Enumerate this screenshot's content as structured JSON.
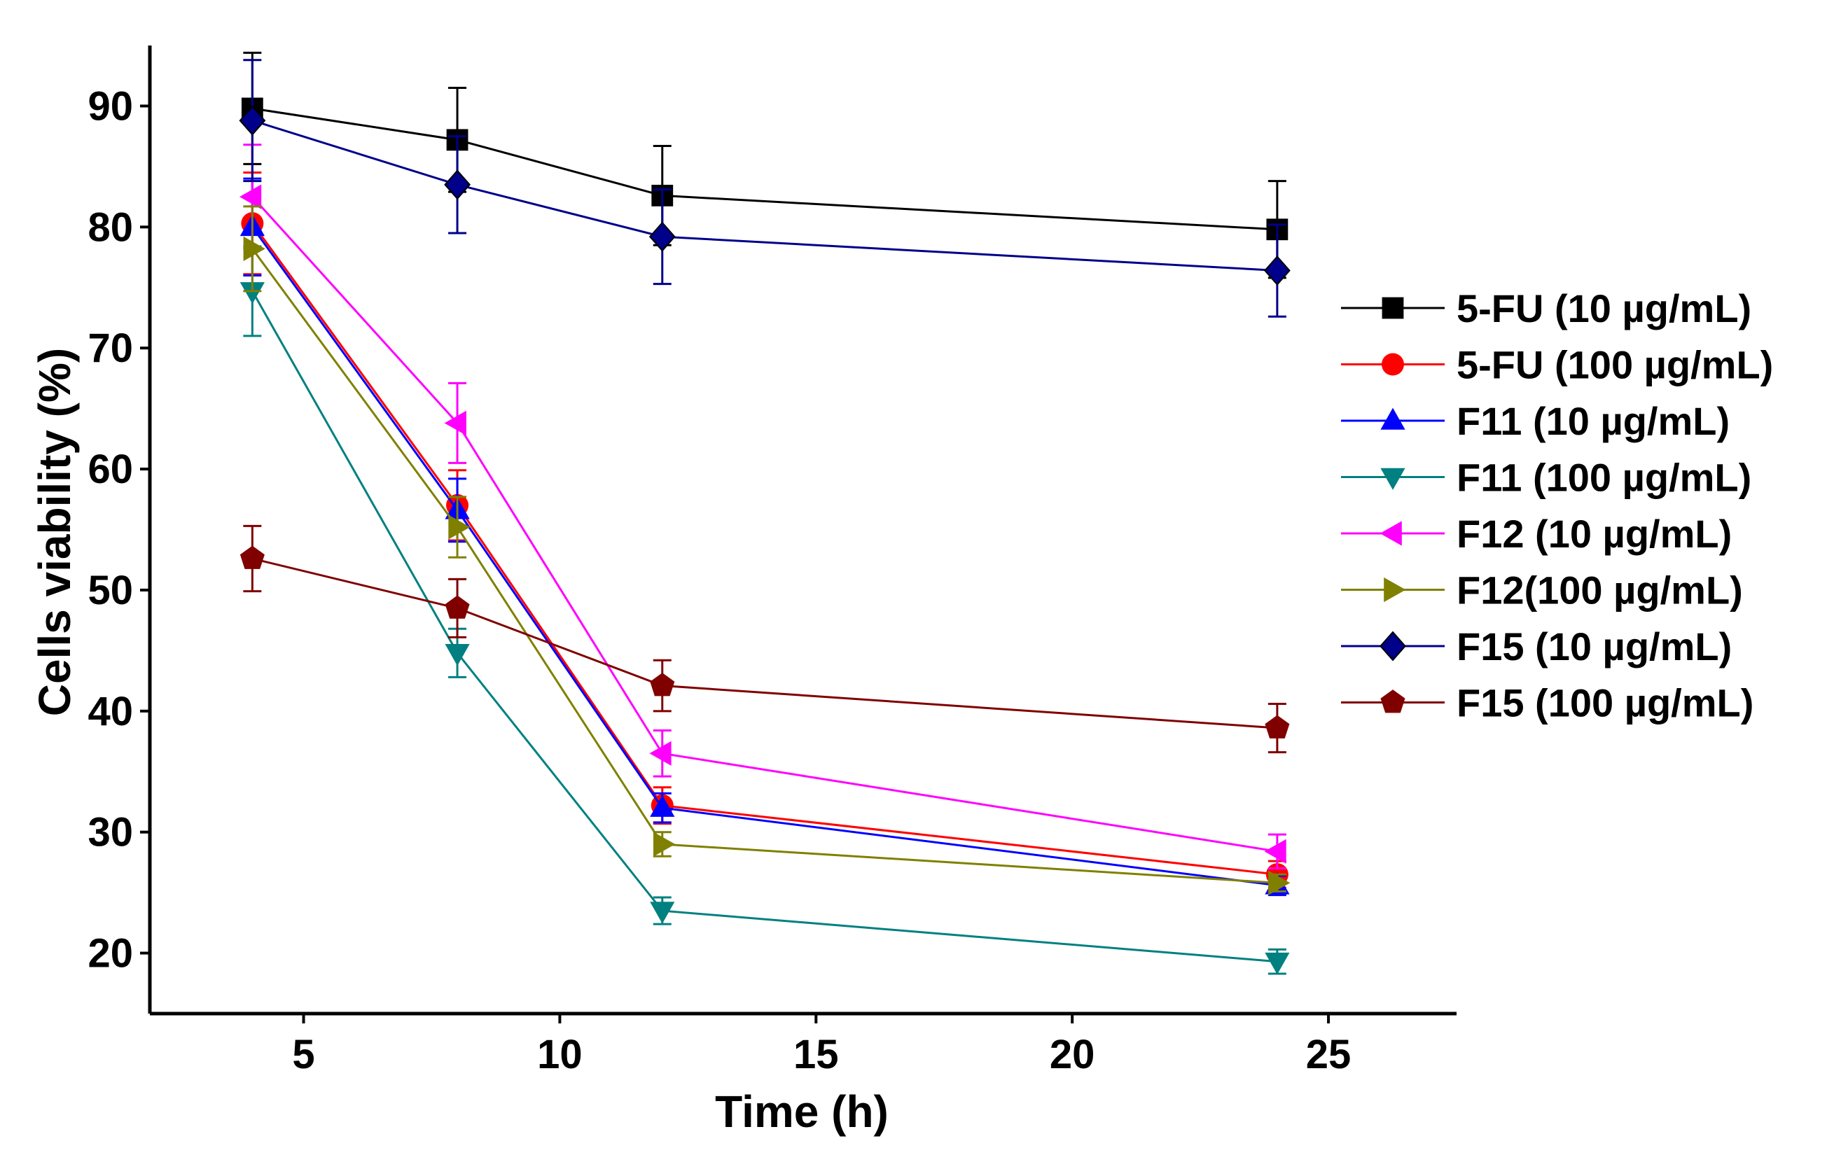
{
  "chart_data": {
    "type": "line",
    "title": "",
    "xlabel": "Time (h)",
    "ylabel": "Cells viability (%)",
    "xlim": [
      2,
      27.5
    ],
    "ylim": [
      15,
      95
    ],
    "xticks": [
      5,
      10,
      15,
      20,
      25
    ],
    "yticks": [
      20,
      30,
      40,
      50,
      60,
      70,
      80,
      90
    ],
    "xtick_labels": [
      "5",
      "10",
      "15",
      "20",
      "25"
    ],
    "ytick_labels": [
      "20",
      "30",
      "40",
      "50",
      "60",
      "70",
      "80",
      "90"
    ],
    "grid": false,
    "legend_position": "right",
    "x": [
      4,
      8,
      12,
      24
    ],
    "series": [
      {
        "name": "5-FU (10 µg/mL)",
        "color": "#000000",
        "marker": "square",
        "values": [
          89.8,
          87.2,
          82.6,
          79.8
        ],
        "errors": [
          4.6,
          4.3,
          4.1,
          4.0
        ]
      },
      {
        "name": "5-FU (100 µg/mL)",
        "color": "#ff0000",
        "marker": "circle",
        "values": [
          80.3,
          57.0,
          32.2,
          26.5
        ],
        "errors": [
          4.2,
          2.9,
          1.5,
          1.1
        ]
      },
      {
        "name": "F11 (10 µg/mL)",
        "color": "#0000ff",
        "marker": "triangle-up",
        "values": [
          80.0,
          56.6,
          32.0,
          25.6
        ],
        "errors": [
          4.0,
          2.6,
          1.2,
          0.8
        ]
      },
      {
        "name": "F11 (100 µg/mL)",
        "color": "#008080",
        "marker": "triangle-down",
        "values": [
          74.7,
          44.8,
          23.5,
          19.3
        ],
        "errors": [
          3.7,
          2.0,
          1.1,
          1.0
        ]
      },
      {
        "name": "F12 (10 µg/mL)",
        "color": "#ff00ff",
        "marker": "triangle-left",
        "values": [
          82.5,
          63.8,
          36.5,
          28.4
        ],
        "errors": [
          4.3,
          3.3,
          1.9,
          1.4
        ]
      },
      {
        "name": "F12(100 µg/mL)",
        "color": "#808000",
        "marker": "triangle-right",
        "values": [
          78.2,
          55.2,
          29.0,
          25.8
        ],
        "errors": [
          3.5,
          2.5,
          1.0,
          0.7
        ]
      },
      {
        "name": "F15 (10 µg/mL)",
        "color": "#00008b",
        "marker": "diamond",
        "values": [
          88.8,
          83.5,
          79.2,
          76.4
        ],
        "errors": [
          5.0,
          4.0,
          3.9,
          3.8
        ]
      },
      {
        "name": "F15 (100 µg/mL)",
        "color": "#800000",
        "marker": "pentagon",
        "values": [
          52.6,
          48.5,
          42.1,
          38.6
        ],
        "errors": [
          2.7,
          2.4,
          2.1,
          2.0
        ]
      }
    ]
  }
}
